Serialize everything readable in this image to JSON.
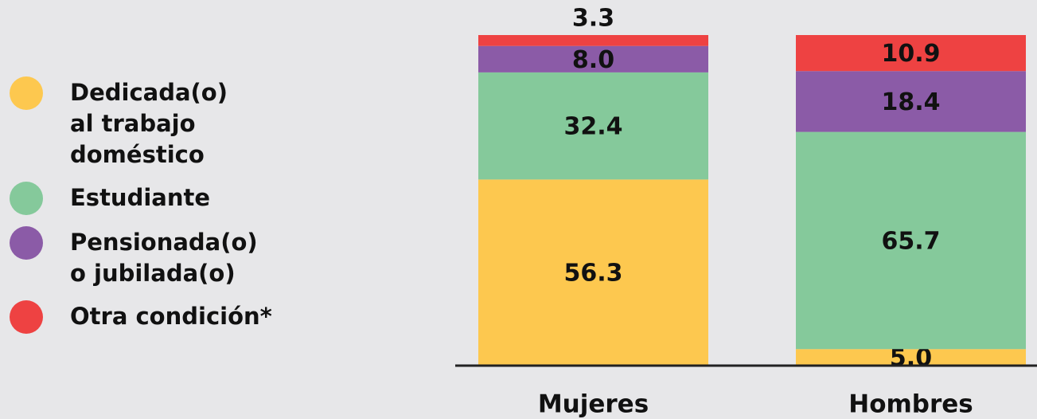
{
  "chart_data": {
    "type": "stacked_bar",
    "categories": [
      "Mujeres",
      "Hombres"
    ],
    "series": [
      {
        "name": "Dedicada(o)\nal trabajo\ndoméstico",
        "color": "#fdc84f",
        "values": [
          56.3,
          5.0
        ],
        "value_labels": [
          "56.3",
          "5.0"
        ]
      },
      {
        "name": "Estudiante",
        "color": "#85c99b",
        "values": [
          32.4,
          65.7
        ],
        "value_labels": [
          "32.4",
          "65.7"
        ]
      },
      {
        "name": "Pensionada(o)\no jubilada(o)",
        "color": "#8b5ba7",
        "values": [
          8.0,
          18.4
        ],
        "value_labels": [
          "8.0",
          "18.4"
        ]
      },
      {
        "name": "Otra condición*",
        "color": "#ee4242",
        "values": [
          3.3,
          10.9
        ],
        "value_labels": [
          "3.3",
          "10.9"
        ]
      }
    ],
    "ylim": [
      0,
      100
    ]
  }
}
